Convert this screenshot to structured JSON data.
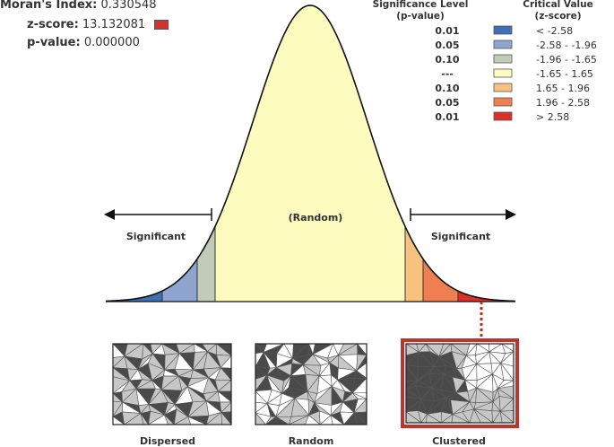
{
  "stats": {
    "morans_label": "Moran's Index:",
    "morans_value": "0.330548",
    "z_label": "z-score:",
    "z_value": "13.132081",
    "z_swatch_color": "#d9312a",
    "p_label": "p-value:",
    "p_value": "0.000000"
  },
  "legend": {
    "sig_heading_line1": "Significance Level",
    "sig_heading_line2": "(p-value)",
    "crit_heading_line1": "Critical Value",
    "crit_heading_line2": "(z-score)",
    "rows": [
      {
        "p": "0.01",
        "color": "#3f6fb5",
        "z": "< -2.58"
      },
      {
        "p": "0.05",
        "color": "#8ea6cf",
        "z": "-2.58 - -1.96"
      },
      {
        "p": "0.10",
        "color": "#c2cbb8",
        "z": "-1.96 - -1.65"
      },
      {
        "p": "---",
        "color": "#fdfbbe",
        "z": "-1.65 - 1.65"
      },
      {
        "p": "0.10",
        "color": "#f7c27f",
        "z": "1.65 - 1.96"
      },
      {
        "p": "0.05",
        "color": "#ef7f51",
        "z": "1.96 - 2.58"
      },
      {
        "p": "0.01",
        "color": "#d9312a",
        "z": "> 2.58"
      }
    ]
  },
  "curve": {
    "center_label": "(Random)",
    "left_label": "Significant",
    "right_label": "Significant",
    "fill_colors": {
      "blue_dark": "#3f6fb5",
      "blue_light": "#8ea6cf",
      "gray_green": "#c2cbb8",
      "yellow": "#fdfbbe",
      "orange_light": "#f7c27f",
      "orange": "#ef7f51",
      "red": "#d9312a"
    }
  },
  "maps": {
    "dispersed_label": "Dispersed",
    "random_label": "Random",
    "clustered_label": "Clustered",
    "highlight_color": "#c0332b"
  }
}
